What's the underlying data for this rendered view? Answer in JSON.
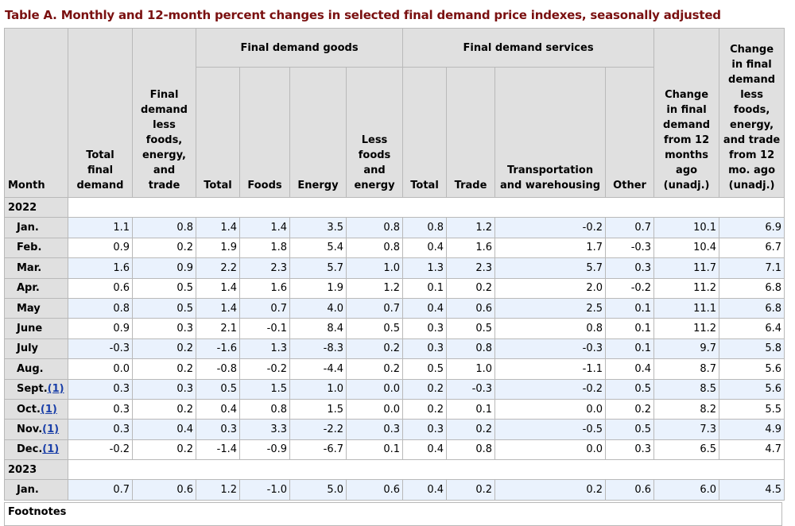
{
  "title": "Table A. Monthly and 12-month percent changes in selected final demand price indexes, seasonally adjusted",
  "headers": {
    "month": "Month",
    "total_final_demand": "Total final demand",
    "fd_less": "Final demand less foods, energy, and trade",
    "goods_group": "Final demand goods",
    "services_group": "Final demand services",
    "goods_total": "Total",
    "goods_foods": "Foods",
    "goods_energy": "Energy",
    "goods_less": "Less foods and energy",
    "services_total": "Total",
    "services_trade": "Trade",
    "services_transport": "Transportation and warehousing",
    "services_other": "Other",
    "change12": "Change in final demand from 12 months ago (unadj.)",
    "change12_less": "Change in final demand less foods, energy, and trade from 12 mo. ago (unadj.)"
  },
  "years": [
    {
      "year": "2022",
      "rows": [
        {
          "month": "Jan.",
          "fn": "",
          "v": [
            "1.1",
            "0.8",
            "1.4",
            "1.4",
            "3.5",
            "0.8",
            "0.8",
            "1.2",
            "-0.2",
            "0.7",
            "10.1",
            "6.9"
          ]
        },
        {
          "month": "Feb.",
          "fn": "",
          "v": [
            "0.9",
            "0.2",
            "1.9",
            "1.8",
            "5.4",
            "0.8",
            "0.4",
            "1.6",
            "1.7",
            "-0.3",
            "10.4",
            "6.7"
          ]
        },
        {
          "month": "Mar.",
          "fn": "",
          "v": [
            "1.6",
            "0.9",
            "2.2",
            "2.3",
            "5.7",
            "1.0",
            "1.3",
            "2.3",
            "5.7",
            "0.3",
            "11.7",
            "7.1"
          ]
        },
        {
          "month": "Apr.",
          "fn": "",
          "v": [
            "0.6",
            "0.5",
            "1.4",
            "1.6",
            "1.9",
            "1.2",
            "0.1",
            "0.2",
            "2.0",
            "-0.2",
            "11.2",
            "6.8"
          ]
        },
        {
          "month": "May",
          "fn": "",
          "v": [
            "0.8",
            "0.5",
            "1.4",
            "0.7",
            "4.0",
            "0.7",
            "0.4",
            "0.6",
            "2.5",
            "0.1",
            "11.1",
            "6.8"
          ]
        },
        {
          "month": "June",
          "fn": "",
          "v": [
            "0.9",
            "0.3",
            "2.1",
            "-0.1",
            "8.4",
            "0.5",
            "0.3",
            "0.5",
            "0.8",
            "0.1",
            "11.2",
            "6.4"
          ]
        },
        {
          "month": "July",
          "fn": "",
          "v": [
            "-0.3",
            "0.2",
            "-1.6",
            "1.3",
            "-8.3",
            "0.2",
            "0.3",
            "0.8",
            "-0.3",
            "0.1",
            "9.7",
            "5.8"
          ]
        },
        {
          "month": "Aug.",
          "fn": "",
          "v": [
            "0.0",
            "0.2",
            "-0.8",
            "-0.2",
            "-4.4",
            "0.2",
            "0.5",
            "1.0",
            "-1.1",
            "0.4",
            "8.7",
            "5.6"
          ]
        },
        {
          "month": "Sept.",
          "fn": "(1)",
          "v": [
            "0.3",
            "0.3",
            "0.5",
            "1.5",
            "1.0",
            "0.0",
            "0.2",
            "-0.3",
            "-0.2",
            "0.5",
            "8.5",
            "5.6"
          ]
        },
        {
          "month": "Oct.",
          "fn": "(1)",
          "v": [
            "0.3",
            "0.2",
            "0.4",
            "0.8",
            "1.5",
            "0.0",
            "0.2",
            "0.1",
            "0.0",
            "0.2",
            "8.2",
            "5.5"
          ]
        },
        {
          "month": "Nov.",
          "fn": "(1)",
          "v": [
            "0.3",
            "0.4",
            "0.3",
            "3.3",
            "-2.2",
            "0.3",
            "0.3",
            "0.2",
            "-0.5",
            "0.5",
            "7.3",
            "4.9"
          ]
        },
        {
          "month": "Dec.",
          "fn": "(1)",
          "v": [
            "-0.2",
            "0.2",
            "-1.4",
            "-0.9",
            "-6.7",
            "0.1",
            "0.4",
            "0.8",
            "0.0",
            "0.3",
            "6.5",
            "4.7"
          ]
        }
      ]
    },
    {
      "year": "2023",
      "rows": [
        {
          "month": "Jan.",
          "fn": "",
          "v": [
            "0.7",
            "0.6",
            "1.2",
            "-1.0",
            "5.0",
            "0.6",
            "0.4",
            "0.2",
            "0.2",
            "0.6",
            "6.0",
            "4.5"
          ]
        }
      ]
    }
  ],
  "footnotes_label": "Footnotes"
}
